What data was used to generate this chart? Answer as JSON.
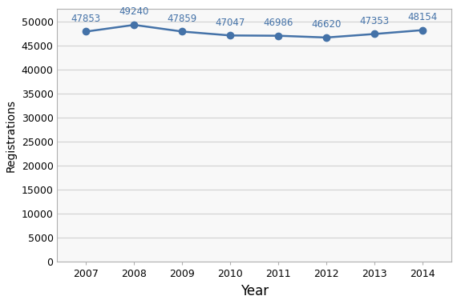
{
  "years": [
    2007,
    2008,
    2009,
    2010,
    2011,
    2012,
    2013,
    2014
  ],
  "values": [
    47853,
    49240,
    47859,
    47047,
    46986,
    46620,
    47353,
    48154
  ],
  "line_color": "#4472a8",
  "marker_color": "#4472a8",
  "marker_style": "o",
  "marker_size": 6,
  "line_width": 1.8,
  "xlabel": "Year",
  "ylabel": "Registrations",
  "xlabel_fontsize": 12,
  "ylabel_fontsize": 10,
  "tick_fontsize": 9,
  "annotation_fontsize": 8.5,
  "annotation_color": "#4472a8",
  "ylim": [
    0,
    52500
  ],
  "ytick_step": 5000,
  "grid_color": "#d0d0d0",
  "grid_linestyle": "-",
  "grid_linewidth": 0.8,
  "background_color": "#ffffff",
  "plot_bg_color": "#f8f8f8",
  "border_color": "#b0b0b0",
  "figsize": [
    5.7,
    3.8
  ],
  "dpi": 100
}
